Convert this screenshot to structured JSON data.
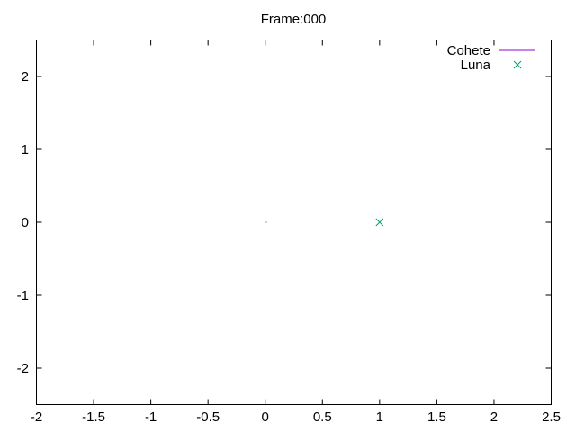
{
  "chart_data": {
    "type": "scatter",
    "title": "Frame:000",
    "xlabel": "",
    "ylabel": "",
    "xlim": [
      -2,
      2.5
    ],
    "ylim": [
      -2.5,
      2.5
    ],
    "x_ticks": [
      -2,
      -1.5,
      -1,
      -0.5,
      0,
      0.5,
      1,
      1.5,
      2,
      2.5
    ],
    "y_ticks": [
      -2,
      -1,
      0,
      1,
      2
    ],
    "x_tick_labels": [
      "-2",
      "-1.5",
      "-1",
      "-0.5",
      "0",
      "0.5",
      "1",
      "1.5",
      "2",
      "2.5"
    ],
    "y_tick_labels": [
      "-2",
      "-1",
      "0",
      "1",
      "2"
    ],
    "grid": false,
    "legend_position": "top-right",
    "series": [
      {
        "name": "Cohete",
        "style": "line",
        "color": "#9400d3",
        "points": [
          [
            0.01,
            0.0
          ]
        ]
      },
      {
        "name": "Luna",
        "style": "cross",
        "color": "#009e73",
        "points": [
          [
            1.0,
            0.0
          ]
        ]
      }
    ]
  }
}
